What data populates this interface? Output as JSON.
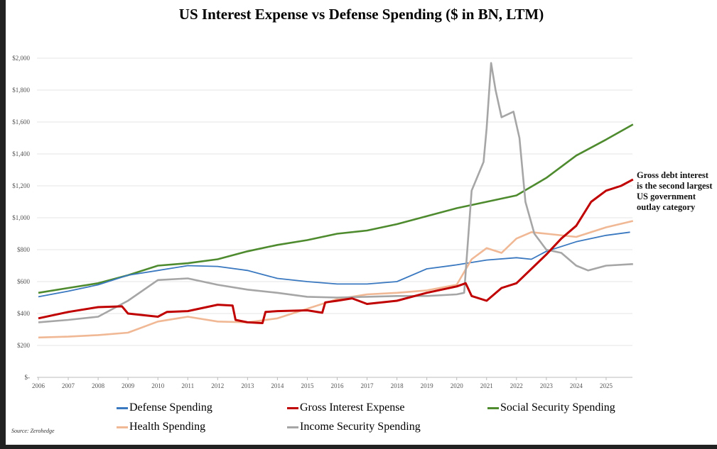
{
  "chart_data": {
    "type": "line",
    "title": "US Interest Expense vs Defense Spending ($ in BN, LTM)",
    "xlabel": "",
    "ylabel": "",
    "xlim": [
      2006,
      2025.9
    ],
    "ylim": [
      0,
      2000
    ],
    "grid": "horizontal",
    "legend_position": "bottom",
    "x_ticks": [
      "2006",
      "2007",
      "2008",
      "2009",
      "2010",
      "2011",
      "2012",
      "2013",
      "2014",
      "2015",
      "2016",
      "2017",
      "2018",
      "2019",
      "2020",
      "2021",
      "2022",
      "2023",
      "2024",
      "2025"
    ],
    "y_ticks": [
      {
        "v": 0,
        "label": "$-"
      },
      {
        "v": 200,
        "label": "$200"
      },
      {
        "v": 400,
        "label": "$400"
      },
      {
        "v": 600,
        "label": "$600"
      },
      {
        "v": 800,
        "label": "$800"
      },
      {
        "v": 1000,
        "label": "$1,000"
      },
      {
        "v": 1200,
        "label": "$1,200"
      },
      {
        "v": 1400,
        "label": "$1,400"
      },
      {
        "v": 1600,
        "label": "$1,600"
      },
      {
        "v": 1800,
        "label": "$1,800"
      },
      {
        "v": 2000,
        "label": "$2,000"
      }
    ],
    "series": [
      {
        "name": "Social Security Spending",
        "color": "#4e8a2e",
        "points": [
          [
            2006,
            530
          ],
          [
            2007,
            560
          ],
          [
            2008,
            590
          ],
          [
            2009,
            640
          ],
          [
            2010,
            700
          ],
          [
            2011,
            715
          ],
          [
            2012,
            740
          ],
          [
            2013,
            790
          ],
          [
            2014,
            830
          ],
          [
            2015,
            860
          ],
          [
            2016,
            900
          ],
          [
            2017,
            920
          ],
          [
            2018,
            960
          ],
          [
            2019,
            1010
          ],
          [
            2020,
            1060
          ],
          [
            2021,
            1100
          ],
          [
            2022,
            1140
          ],
          [
            2023,
            1250
          ],
          [
            2024,
            1390
          ],
          [
            2025,
            1490
          ],
          [
            2025.9,
            1585
          ]
        ]
      },
      {
        "name": "Defense Spending",
        "color": "#3a78c0",
        "points": [
          [
            2006,
            505
          ],
          [
            2007,
            540
          ],
          [
            2008,
            580
          ],
          [
            2009,
            640
          ],
          [
            2010,
            670
          ],
          [
            2011,
            700
          ],
          [
            2012,
            695
          ],
          [
            2013,
            670
          ],
          [
            2014,
            620
          ],
          [
            2015,
            600
          ],
          [
            2016,
            585
          ],
          [
            2017,
            585
          ],
          [
            2018,
            600
          ],
          [
            2019,
            680
          ],
          [
            2020,
            705
          ],
          [
            2021,
            735
          ],
          [
            2022,
            750
          ],
          [
            2022.5,
            740
          ],
          [
            2023,
            790
          ],
          [
            2024,
            850
          ],
          [
            2025,
            890
          ],
          [
            2025.8,
            910
          ]
        ]
      },
      {
        "name": "Health Spending",
        "color": "#f0b894",
        "points": [
          [
            2006,
            250
          ],
          [
            2007,
            255
          ],
          [
            2008,
            265
          ],
          [
            2009,
            280
          ],
          [
            2010,
            350
          ],
          [
            2011,
            380
          ],
          [
            2012,
            350
          ],
          [
            2013,
            345
          ],
          [
            2014,
            370
          ],
          [
            2015,
            430
          ],
          [
            2016,
            490
          ],
          [
            2017,
            520
          ],
          [
            2018,
            530
          ],
          [
            2019,
            545
          ],
          [
            2020,
            580
          ],
          [
            2020.5,
            740
          ],
          [
            2021,
            810
          ],
          [
            2021.5,
            780
          ],
          [
            2022,
            870
          ],
          [
            2022.5,
            910
          ],
          [
            2023,
            900
          ],
          [
            2024,
            880
          ],
          [
            2025,
            940
          ],
          [
            2025.9,
            980
          ]
        ]
      },
      {
        "name": "Income Security Spending",
        "color": "#a6a6a6",
        "points": [
          [
            2006,
            345
          ],
          [
            2007,
            360
          ],
          [
            2008,
            380
          ],
          [
            2009,
            480
          ],
          [
            2010,
            610
          ],
          [
            2011,
            620
          ],
          [
            2012,
            580
          ],
          [
            2013,
            550
          ],
          [
            2014,
            530
          ],
          [
            2015,
            505
          ],
          [
            2016,
            500
          ],
          [
            2017,
            505
          ],
          [
            2018,
            510
          ],
          [
            2019,
            510
          ],
          [
            2020,
            520
          ],
          [
            2020.25,
            530
          ],
          [
            2020.5,
            1170
          ],
          [
            2020.9,
            1350
          ],
          [
            2021,
            1560
          ],
          [
            2021.15,
            1970
          ],
          [
            2021.3,
            1800
          ],
          [
            2021.5,
            1630
          ],
          [
            2021.9,
            1665
          ],
          [
            2022.1,
            1500
          ],
          [
            2022.3,
            1100
          ],
          [
            2022.6,
            900
          ],
          [
            2023,
            800
          ],
          [
            2023.5,
            780
          ],
          [
            2024,
            700
          ],
          [
            2024.4,
            670
          ],
          [
            2025,
            700
          ],
          [
            2025.9,
            710
          ]
        ]
      },
      {
        "name": "Gross Interest Expense",
        "color": "#c00000",
        "points": [
          [
            2006,
            370
          ],
          [
            2007,
            410
          ],
          [
            2008,
            440
          ],
          [
            2008.8,
            445
          ],
          [
            2009,
            400
          ],
          [
            2010,
            380
          ],
          [
            2010.3,
            410
          ],
          [
            2011,
            415
          ],
          [
            2012,
            455
          ],
          [
            2012.5,
            450
          ],
          [
            2012.6,
            360
          ],
          [
            2013,
            345
          ],
          [
            2013.5,
            340
          ],
          [
            2013.6,
            410
          ],
          [
            2014,
            415
          ],
          [
            2015,
            420
          ],
          [
            2015.5,
            405
          ],
          [
            2015.6,
            470
          ],
          [
            2016,
            480
          ],
          [
            2016.5,
            495
          ],
          [
            2017,
            460
          ],
          [
            2018,
            480
          ],
          [
            2019,
            530
          ],
          [
            2020,
            570
          ],
          [
            2020.3,
            590
          ],
          [
            2020.5,
            510
          ],
          [
            2021,
            480
          ],
          [
            2021.5,
            560
          ],
          [
            2022,
            590
          ],
          [
            2023,
            770
          ],
          [
            2023.5,
            870
          ],
          [
            2024,
            950
          ],
          [
            2024.5,
            1100
          ],
          [
            2025,
            1170
          ],
          [
            2025.5,
            1200
          ],
          [
            2025.9,
            1240
          ]
        ]
      }
    ],
    "legend_order": [
      1,
      4,
      0,
      2,
      3
    ],
    "annotation": "Gross debt interest is the second largest US government outlay category",
    "source": "Source: Zerohedge"
  }
}
